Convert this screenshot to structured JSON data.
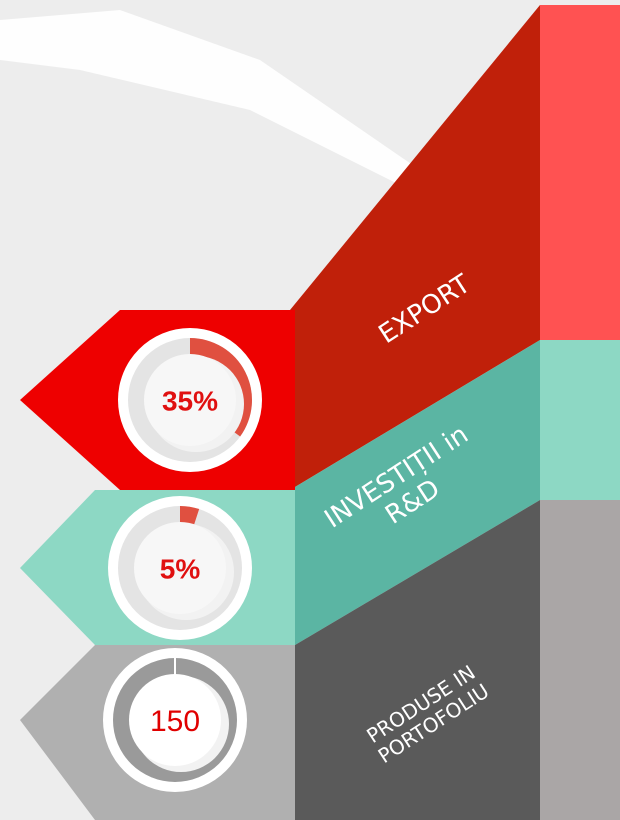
{
  "items": [
    {
      "label": [
        "EXPORT"
      ],
      "value": 35,
      "value_label": "35%"
    },
    {
      "label": [
        "INVESTIȚII in",
        "R&D"
      ],
      "value": 5,
      "value_label": "5%"
    },
    {
      "label": [
        "PRODUSE IN",
        "PORTOFOLIU"
      ],
      "value_label": "150"
    }
  ]
}
